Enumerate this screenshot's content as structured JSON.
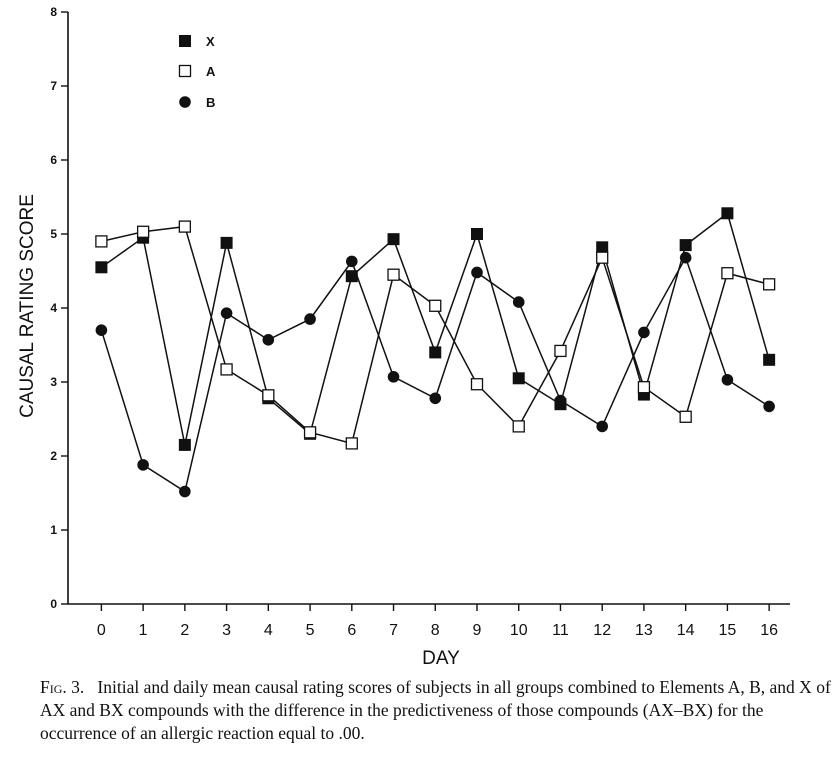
{
  "chart_data": {
    "type": "line",
    "title": "",
    "xlabel": "DAY",
    "ylabel": "CAUSAL RATING SCORE",
    "x": [
      0,
      1,
      2,
      3,
      4,
      5,
      6,
      7,
      8,
      9,
      10,
      11,
      12,
      13,
      14,
      15,
      16
    ],
    "xlim": [
      -0.8,
      16.5
    ],
    "ylim": [
      0,
      8
    ],
    "yticks": [
      0,
      1,
      2,
      3,
      4,
      5,
      6,
      7,
      8
    ],
    "grid": false,
    "legend_position": "top-left",
    "series": [
      {
        "name": "X",
        "marker": "filled-square",
        "values": [
          4.55,
          4.95,
          2.15,
          4.88,
          2.78,
          2.3,
          4.43,
          4.93,
          3.4,
          5.0,
          3.05,
          2.7,
          4.82,
          2.83,
          4.85,
          5.28,
          3.3
        ]
      },
      {
        "name": "A",
        "marker": "open-square",
        "values": [
          4.9,
          5.03,
          5.1,
          3.17,
          2.82,
          2.32,
          2.17,
          4.45,
          4.03,
          2.97,
          2.4,
          3.42,
          4.68,
          2.93,
          2.53,
          4.47,
          4.32
        ]
      },
      {
        "name": "B",
        "marker": "filled-circle",
        "values": [
          3.7,
          1.88,
          1.52,
          3.93,
          3.57,
          3.85,
          4.63,
          3.07,
          2.78,
          4.48,
          4.08,
          2.75,
          2.4,
          3.67,
          4.68,
          3.03,
          2.67
        ]
      }
    ]
  },
  "caption": {
    "label": "Fig. 3.",
    "text": "Initial and daily mean causal rating scores of subjects in all groups combined to Elements A, B, and X of AX and BX compounds with the difference in the predictiveness of those compounds (AX–BX) for the occurrence of an allergic reaction equal to .00."
  }
}
